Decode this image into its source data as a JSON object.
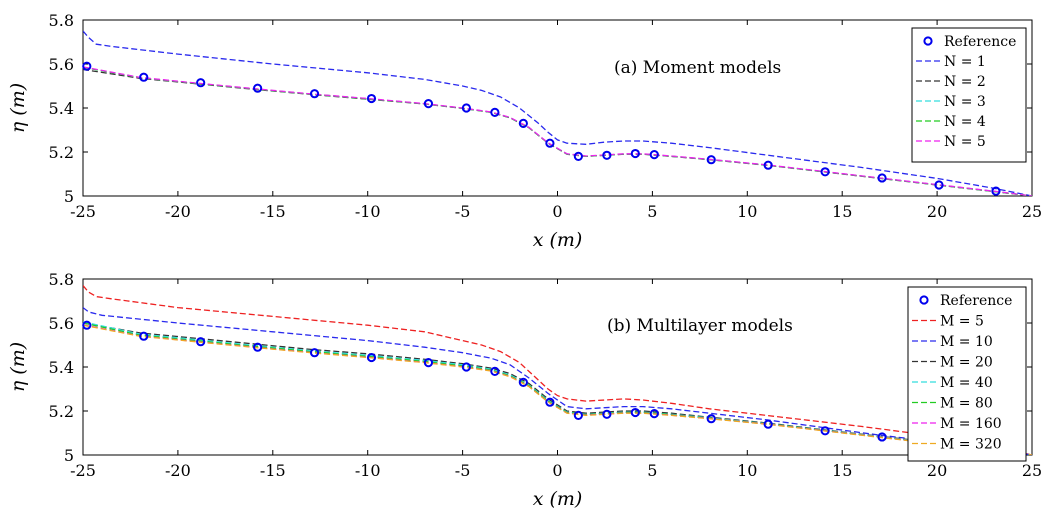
{
  "chart_data": [
    {
      "type": "line",
      "annotation": "(a) Moment models",
      "xlabel": "x (m)",
      "ylabel": "η (m)",
      "xlim": [
        -25,
        25
      ],
      "ylim": [
        5,
        5.8
      ],
      "xticks": [
        -25,
        -20,
        -15,
        -10,
        -5,
        0,
        5,
        10,
        15,
        20,
        25
      ],
      "yticks": [
        5,
        5.2,
        5.4,
        5.6,
        5.8
      ],
      "ytick_labels": [
        "5",
        "5.2",
        "5.4",
        "5.6",
        "5.8"
      ],
      "grid": false,
      "legend_position": "top-right",
      "reference": {
        "name": "Reference",
        "color": "#0000ee",
        "x": [
          -24.8,
          -21.8,
          -18.8,
          -15.8,
          -12.8,
          -9.8,
          -6.8,
          -4.8,
          -3.3,
          -1.8,
          -0.4,
          1.1,
          2.6,
          4.1,
          5.1,
          8.1,
          11.1,
          14.1,
          17.1,
          20.1,
          23.1
        ],
        "y": [
          5.59,
          5.54,
          5.515,
          5.49,
          5.465,
          5.443,
          5.42,
          5.4,
          5.38,
          5.33,
          5.24,
          5.18,
          5.185,
          5.193,
          5.188,
          5.165,
          5.14,
          5.11,
          5.082,
          5.05,
          5.022
        ]
      },
      "series": [
        {
          "name": "N = 1",
          "color": "#2a2aee",
          "x": [
            -25,
            -24.7,
            -24.3,
            -23.5,
            -20,
            -15,
            -10,
            -7,
            -5,
            -4,
            -3,
            -2,
            -1,
            -0.5,
            0,
            0.5,
            1.5,
            2.5,
            3.5,
            4.5,
            6,
            8,
            12,
            16,
            20,
            23,
            25
          ],
          "y": [
            5.75,
            5.72,
            5.69,
            5.68,
            5.645,
            5.6,
            5.56,
            5.53,
            5.5,
            5.48,
            5.45,
            5.4,
            5.33,
            5.29,
            5.255,
            5.24,
            5.235,
            5.245,
            5.25,
            5.25,
            5.24,
            5.22,
            5.175,
            5.13,
            5.08,
            5.035,
            5.0
          ]
        },
        {
          "name": "N = 2",
          "color": "#333333",
          "x": [
            -25,
            -22,
            -19,
            -16,
            -13,
            -10,
            -7,
            -5,
            -3.5,
            -2.5,
            -1.5,
            -0.5,
            0.5,
            1.5,
            2.5,
            3.5,
            4.5,
            6,
            8,
            11,
            14,
            17,
            20,
            23,
            25
          ],
          "y": [
            5.575,
            5.535,
            5.51,
            5.485,
            5.462,
            5.44,
            5.418,
            5.398,
            5.38,
            5.355,
            5.31,
            5.24,
            5.19,
            5.18,
            5.185,
            5.19,
            5.19,
            5.18,
            5.165,
            5.14,
            5.11,
            5.08,
            5.05,
            5.02,
            5.0
          ]
        },
        {
          "name": "N = 3",
          "color": "#33dddd",
          "x": [
            -25,
            -22,
            -19,
            -16,
            -13,
            -10,
            -7,
            -5,
            -3.5,
            -2.5,
            -1.5,
            -0.5,
            0.5,
            1.5,
            2.5,
            3.5,
            4.5,
            6,
            8,
            11,
            14,
            17,
            20,
            23,
            25
          ],
          "y": [
            5.585,
            5.538,
            5.512,
            5.487,
            5.463,
            5.442,
            5.419,
            5.399,
            5.381,
            5.356,
            5.311,
            5.241,
            5.191,
            5.181,
            5.186,
            5.191,
            5.191,
            5.181,
            5.166,
            5.141,
            5.111,
            5.081,
            5.051,
            5.021,
            5.0
          ]
        },
        {
          "name": "N = 4",
          "color": "#22cc22",
          "x": [
            -25,
            -22,
            -19,
            -16,
            -13,
            -10,
            -7,
            -5,
            -3.5,
            -2.5,
            -1.5,
            -0.5,
            0.5,
            1.5,
            2.5,
            3.5,
            4.5,
            6,
            8,
            11,
            14,
            17,
            20,
            23,
            25
          ],
          "y": [
            5.585,
            5.538,
            5.512,
            5.487,
            5.463,
            5.442,
            5.419,
            5.399,
            5.381,
            5.356,
            5.311,
            5.241,
            5.191,
            5.181,
            5.186,
            5.191,
            5.191,
            5.181,
            5.166,
            5.141,
            5.111,
            5.081,
            5.051,
            5.021,
            5.0
          ]
        },
        {
          "name": "N = 5",
          "color": "#ee22ee",
          "x": [
            -25,
            -22,
            -19,
            -16,
            -13,
            -10,
            -7,
            -5,
            -3.5,
            -2.5,
            -1.5,
            -0.5,
            0.5,
            1.5,
            2.5,
            3.5,
            4.5,
            6,
            8,
            11,
            14,
            17,
            20,
            23,
            25
          ],
          "y": [
            5.587,
            5.539,
            5.513,
            5.488,
            5.464,
            5.443,
            5.42,
            5.4,
            5.382,
            5.357,
            5.312,
            5.242,
            5.192,
            5.182,
            5.187,
            5.192,
            5.192,
            5.182,
            5.167,
            5.142,
            5.112,
            5.082,
            5.052,
            5.022,
            5.0
          ]
        }
      ]
    },
    {
      "type": "line",
      "annotation": "(b) Multilayer models",
      "xlabel": "x (m)",
      "ylabel": "η (m)",
      "xlim": [
        -25,
        25
      ],
      "ylim": [
        5,
        5.8
      ],
      "xticks": [
        -25,
        -20,
        -15,
        -10,
        -5,
        0,
        5,
        10,
        15,
        20,
        25
      ],
      "yticks": [
        5,
        5.2,
        5.4,
        5.6,
        5.8
      ],
      "ytick_labels": [
        "5",
        "5.2",
        "5.4",
        "5.6",
        "5.8"
      ],
      "grid": false,
      "legend_position": "top-right",
      "reference": {
        "name": "Reference",
        "color": "#0000ee",
        "x": [
          -24.8,
          -21.8,
          -18.8,
          -15.8,
          -12.8,
          -9.8,
          -6.8,
          -4.8,
          -3.3,
          -1.8,
          -0.4,
          1.1,
          2.6,
          4.1,
          5.1,
          8.1,
          11.1,
          14.1,
          17.1,
          20.1,
          23.1
        ],
        "y": [
          5.59,
          5.54,
          5.515,
          5.49,
          5.465,
          5.443,
          5.42,
          5.4,
          5.38,
          5.33,
          5.24,
          5.18,
          5.185,
          5.193,
          5.188,
          5.165,
          5.14,
          5.11,
          5.082,
          5.05,
          5.022
        ]
      },
      "series": [
        {
          "name": "M = 5",
          "color": "#ee2222",
          "x": [
            -25,
            -24.7,
            -24.3,
            -23.5,
            -20,
            -15,
            -10,
            -7,
            -5,
            -4,
            -3,
            -2,
            -1,
            -0.5,
            0,
            0.5,
            1.5,
            2.5,
            3.5,
            4.5,
            6,
            8,
            12,
            16,
            20,
            23,
            25
          ],
          "y": [
            5.77,
            5.74,
            5.72,
            5.71,
            5.67,
            5.63,
            5.59,
            5.56,
            5.52,
            5.5,
            5.47,
            5.42,
            5.34,
            5.3,
            5.27,
            5.255,
            5.245,
            5.25,
            5.255,
            5.25,
            5.235,
            5.21,
            5.17,
            5.13,
            5.085,
            5.04,
            5.0
          ]
        },
        {
          "name": "M = 10",
          "color": "#2a2aee",
          "x": [
            -25,
            -24.7,
            -24,
            -20,
            -15,
            -10,
            -7,
            -5,
            -3.5,
            -2.5,
            -1.5,
            -0.5,
            0.5,
            1.5,
            2.5,
            3.5,
            4.5,
            6,
            8,
            11,
            14,
            17,
            20,
            23,
            25
          ],
          "y": [
            5.67,
            5.65,
            5.635,
            5.6,
            5.56,
            5.52,
            5.49,
            5.465,
            5.44,
            5.41,
            5.35,
            5.28,
            5.22,
            5.21,
            5.215,
            5.22,
            5.22,
            5.21,
            5.19,
            5.16,
            5.125,
            5.09,
            5.06,
            5.025,
            5.0
          ]
        },
        {
          "name": "M = 20",
          "color": "#333333",
          "x": [
            -25,
            -22,
            -19,
            -16,
            -13,
            -10,
            -7,
            -5,
            -3.5,
            -2.5,
            -1.5,
            -0.5,
            0.5,
            1.5,
            2.5,
            3.5,
            4.5,
            6,
            8,
            11,
            14,
            17,
            20,
            23,
            25
          ],
          "y": [
            5.6,
            5.555,
            5.53,
            5.505,
            5.48,
            5.46,
            5.435,
            5.415,
            5.395,
            5.37,
            5.325,
            5.255,
            5.2,
            5.19,
            5.195,
            5.2,
            5.2,
            5.19,
            5.172,
            5.146,
            5.115,
            5.085,
            5.055,
            5.025,
            5.0
          ]
        },
        {
          "name": "M = 40",
          "color": "#33dddd",
          "x": [
            -25,
            -22,
            -19,
            -16,
            -13,
            -10,
            -7,
            -5,
            -3.5,
            -2.5,
            -1.5,
            -0.5,
            0.5,
            1.5,
            2.5,
            3.5,
            4.5,
            6,
            8,
            11,
            14,
            17,
            20,
            23,
            25
          ],
          "y": [
            5.605,
            5.55,
            5.524,
            5.498,
            5.474,
            5.453,
            5.43,
            5.41,
            5.39,
            5.364,
            5.318,
            5.248,
            5.195,
            5.185,
            5.19,
            5.195,
            5.195,
            5.185,
            5.169,
            5.143,
            5.113,
            5.083,
            5.053,
            5.023,
            5.0
          ]
        },
        {
          "name": "M = 80",
          "color": "#22cc22",
          "x": [
            -25,
            -22,
            -19,
            -16,
            -13,
            -10,
            -7,
            -5,
            -3.5,
            -2.5,
            -1.5,
            -0.5,
            0.5,
            1.5,
            2.5,
            3.5,
            4.5,
            6,
            8,
            11,
            14,
            17,
            20,
            23,
            25
          ],
          "y": [
            5.6,
            5.545,
            5.519,
            5.494,
            5.47,
            5.448,
            5.425,
            5.405,
            5.386,
            5.36,
            5.315,
            5.245,
            5.193,
            5.183,
            5.188,
            5.193,
            5.193,
            5.183,
            5.167,
            5.142,
            5.112,
            5.082,
            5.052,
            5.022,
            5.0
          ]
        },
        {
          "name": "M = 160",
          "color": "#ee22ee",
          "x": [
            -25,
            -22,
            -19,
            -16,
            -13,
            -10,
            -7,
            -5,
            -3.5,
            -2.5,
            -1.5,
            -0.5,
            0.5,
            1.5,
            2.5,
            3.5,
            4.5,
            6,
            8,
            11,
            14,
            17,
            20,
            23,
            25
          ],
          "y": [
            5.592,
            5.541,
            5.515,
            5.49,
            5.466,
            5.444,
            5.421,
            5.401,
            5.383,
            5.357,
            5.312,
            5.242,
            5.191,
            5.181,
            5.186,
            5.191,
            5.191,
            5.181,
            5.166,
            5.141,
            5.111,
            5.081,
            5.051,
            5.021,
            5.0
          ]
        },
        {
          "name": "M = 320",
          "color": "#eeaa22",
          "x": [
            -25,
            -22,
            -19,
            -16,
            -13,
            -10,
            -7,
            -5,
            -3.5,
            -2.5,
            -1.5,
            -0.5,
            0.5,
            1.5,
            2.5,
            3.5,
            4.5,
            6,
            8,
            11,
            14,
            17,
            20,
            23,
            25
          ],
          "y": [
            5.59,
            5.54,
            5.514,
            5.489,
            5.465,
            5.443,
            5.42,
            5.4,
            5.382,
            5.356,
            5.311,
            5.241,
            5.19,
            5.18,
            5.185,
            5.19,
            5.19,
            5.18,
            5.165,
            5.14,
            5.11,
            5.08,
            5.05,
            5.02,
            5.0
          ]
        }
      ]
    }
  ]
}
